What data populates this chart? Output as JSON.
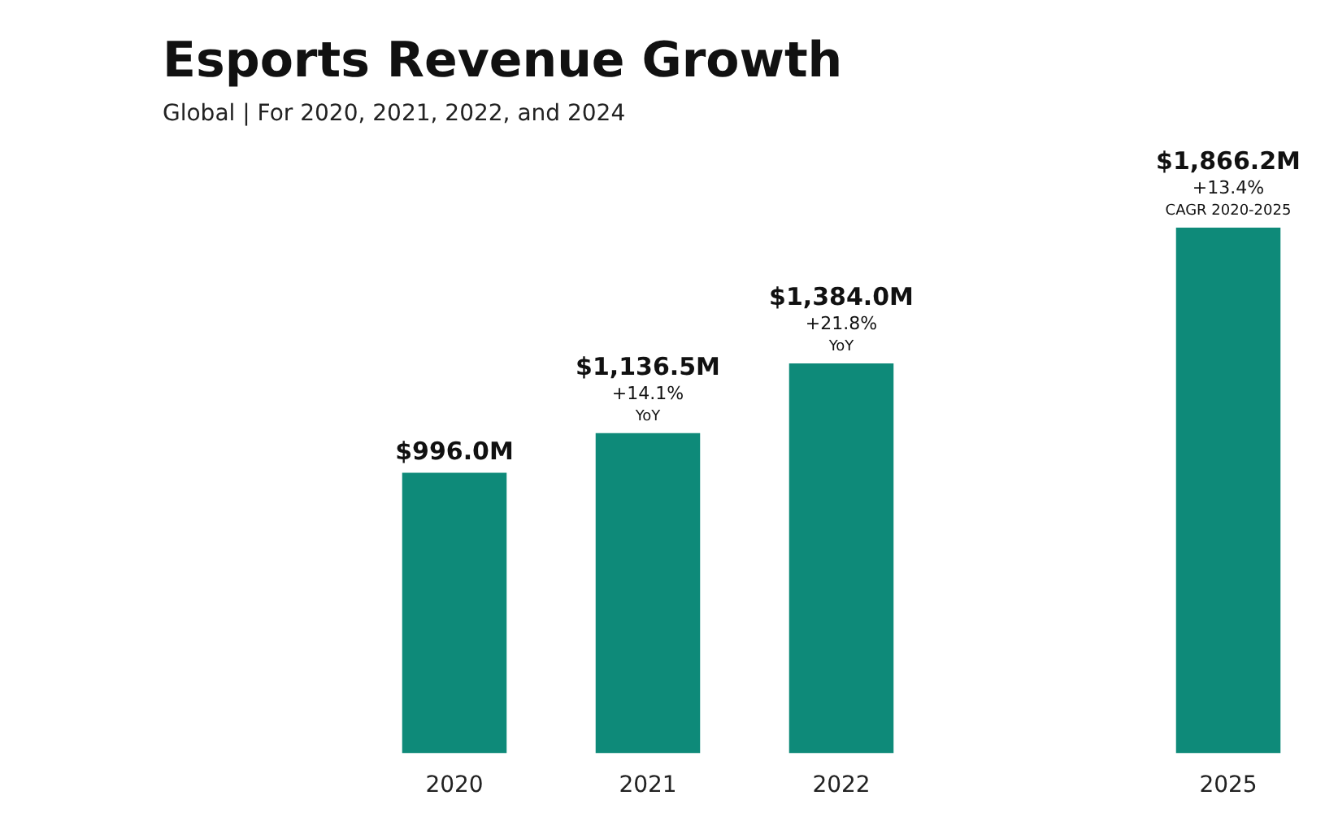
{
  "chart_data": {
    "type": "bar",
    "title": "Esports Revenue Growth",
    "subtitle": "Global | For 2020, 2021, 2022, and 2024",
    "categories": [
      "2020",
      "2021",
      "2022",
      null,
      "2025"
    ],
    "values": [
      996.0,
      1136.5,
      1384.0,
      null,
      1866.2
    ],
    "value_labels": [
      "$996.0M",
      "$1,136.5M",
      "$1,384.0M",
      null,
      "$1,866.2M"
    ],
    "color": "#0e8a79",
    "grid": false,
    "legend": false,
    "annotations": [
      {
        "text": "+14.1%",
        "x": "2021",
        "y": 1136.5
      },
      {
        "text": "YoY",
        "x": "2021",
        "y": 1136.5
      },
      {
        "text": "+21.8%",
        "x": "2022",
        "y": 1384.0
      },
      {
        "text": "YoY",
        "x": "2022",
        "y": 1384.0
      },
      {
        "text": "+13.4%",
        "x": "2025",
        "y": 1866.2
      },
      {
        "text": "CAGR 2020-2025",
        "x": "2025",
        "y": 1866.2
      }
    ]
  }
}
